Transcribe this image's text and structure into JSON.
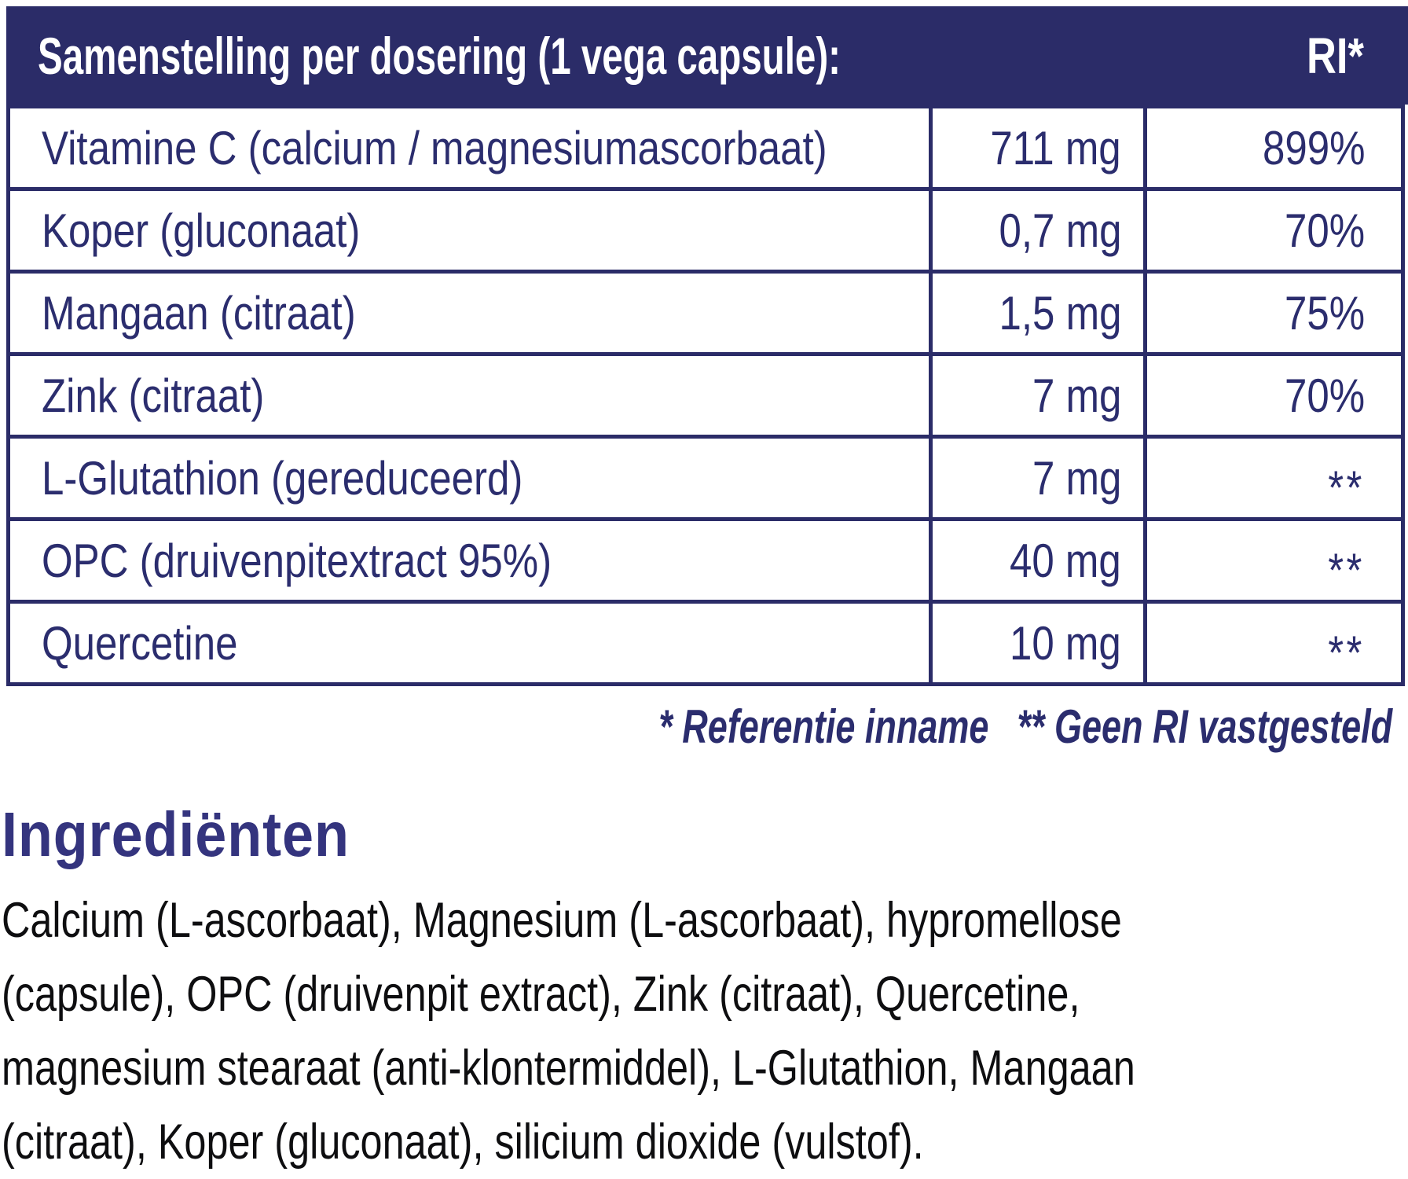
{
  "colors": {
    "navy_bar": "#2b2c68",
    "table_ink": "#2b2d6e",
    "heading_ink": "#34347e",
    "body_ink": "#0e0e10",
    "bar_text": "#ffffff"
  },
  "table": {
    "title": "Samenstelling per dosering (1 vega capsule):",
    "ri_header": "RI*",
    "rows": [
      {
        "name": "Vitamine C (calcium / magnesiumascorbaat)",
        "amount": "711 mg",
        "ri": "899%"
      },
      {
        "name": "Koper (gluconaat)",
        "amount": "0,7 mg",
        "ri": "70%"
      },
      {
        "name": "Mangaan (citraat)",
        "amount": "1,5 mg",
        "ri": "75%"
      },
      {
        "name": "Zink (citraat)",
        "amount": "7 mg",
        "ri": "70%"
      },
      {
        "name": "L-Glutathion (gereduceerd)",
        "amount": "7 mg",
        "ri": "**"
      },
      {
        "name": "OPC (druivenpitextract 95%)",
        "amount": "40 mg",
        "ri": "**"
      },
      {
        "name": "Quercetine",
        "amount": "10 mg",
        "ri": "**"
      }
    ],
    "footnotes": [
      "* Referentie inname",
      "** Geen RI vastgesteld"
    ]
  },
  "ingredients": {
    "heading": "Ingrediënten",
    "lines": [
      "Calcium (L-ascorbaat), Magnesium (L-ascorbaat), hypromellose",
      "(capsule), OPC (druivenpit extract), Zink (citraat), Quercetine,",
      "magnesium stearaat (anti-klontermiddel), L-Glutathion, Mangaan",
      "(citraat), Koper (gluconaat), silicium dioxide (vulstof)."
    ]
  }
}
